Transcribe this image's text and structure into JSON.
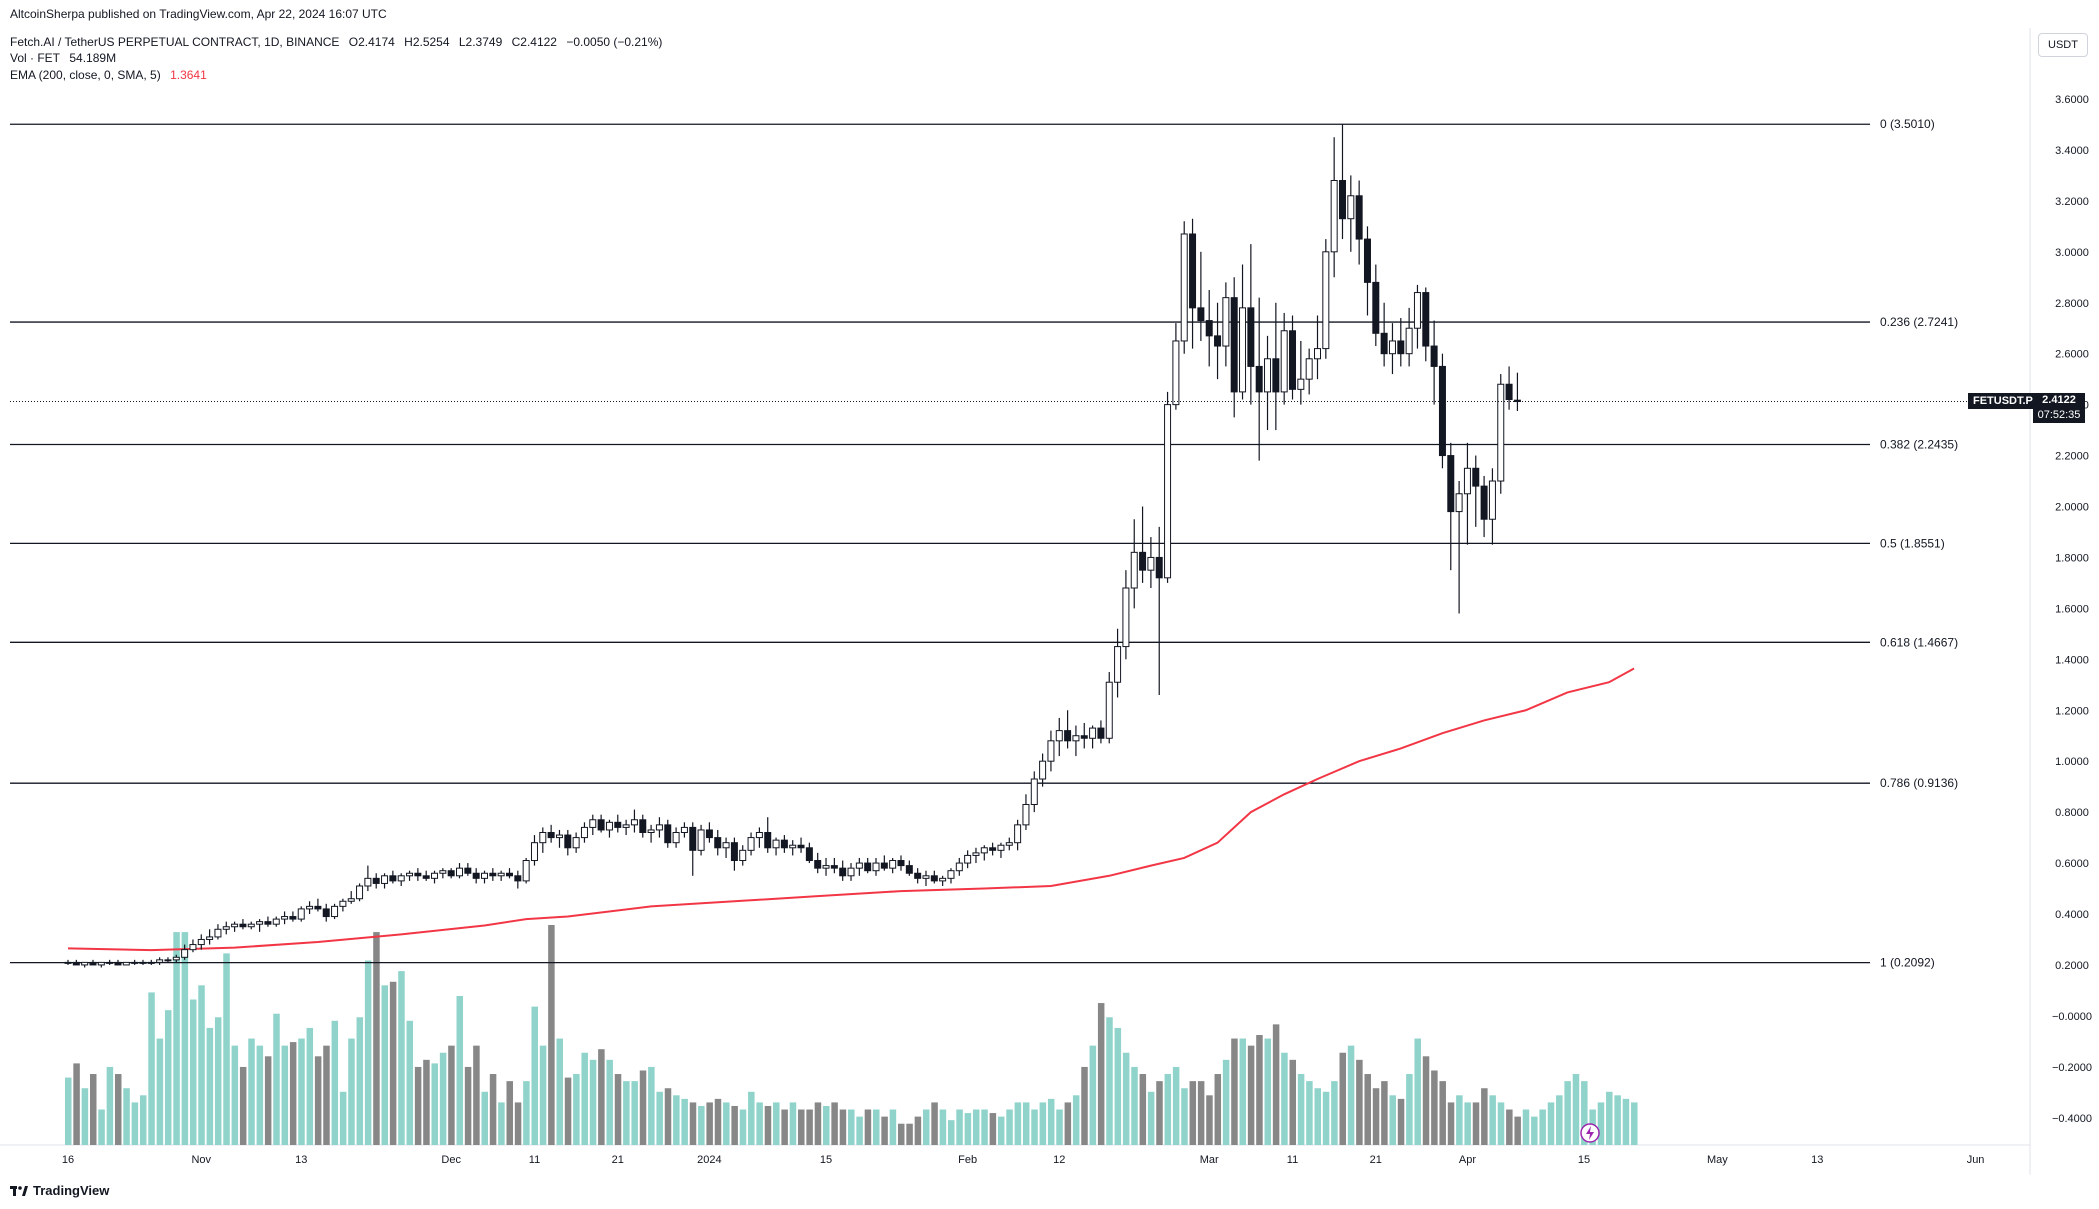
{
  "header": {
    "attribution": "AltcoinSherpa published on TradingView.com, Apr 22, 2024 16:07 UTC",
    "symbol_title": "Fetch.AI / TetherUS PERPETUAL CONTRACT, 1D, BINANCE",
    "open": "O2.4174",
    "high": "H2.5254",
    "low": "L2.3749",
    "close": "C2.4122",
    "change": "−0.0050 (−0.21%)",
    "vol_label": "Vol · FET",
    "vol_value": "54.189M",
    "ema_label": "EMA (200, close, 0, SMA, 5)",
    "ema_value": "1.3641"
  },
  "currency_button": "USDT",
  "symbol_badge": "FETUSDT.P",
  "price_badge": {
    "price": "2.4122",
    "countdown": "07:52:35"
  },
  "branding": "TradingView",
  "colors": {
    "up": "#ffffff",
    "down": "#131722",
    "ema": "#f23645",
    "vol_up": "#8fd3cb",
    "vol_down": "#878787",
    "line": "#131722"
  },
  "chart_data": {
    "type": "candlestick",
    "title": "Fetch.AI / TetherUS PERPETUAL CONTRACT, 1D, BINANCE",
    "ylim": [
      -0.45,
      3.75
    ],
    "y_ticks": [
      "3.6000",
      "3.4000",
      "3.2000",
      "3.0000",
      "2.8000",
      "2.6000",
      "2.4000",
      "2.2000",
      "2.0000",
      "1.8000",
      "1.6000",
      "1.4000",
      "1.2000",
      "1.0000",
      "0.8000",
      "0.6000",
      "0.4000",
      "0.2000",
      "−0.0000",
      "−0.2000",
      "−0.4000"
    ],
    "x_ticks": [
      {
        "label": "16",
        "day": 0
      },
      {
        "label": "Nov",
        "day": 16
      },
      {
        "label": "13",
        "day": 28
      },
      {
        "label": "Dec",
        "day": 46
      },
      {
        "label": "11",
        "day": 56
      },
      {
        "label": "21",
        "day": 66
      },
      {
        "label": "2024",
        "day": 77
      },
      {
        "label": "15",
        "day": 91
      },
      {
        "label": "Feb",
        "day": 108
      },
      {
        "label": "12",
        "day": 119
      },
      {
        "label": "Mar",
        "day": 137
      },
      {
        "label": "11",
        "day": 147
      },
      {
        "label": "21",
        "day": 157
      },
      {
        "label": "Apr",
        "day": 168
      },
      {
        "label": "15",
        "day": 182
      },
      {
        "label": "May",
        "day": 198
      },
      {
        "label": "13",
        "day": 210
      },
      {
        "label": "Jun",
        "day": 229
      }
    ],
    "fib_levels": [
      {
        "label": "0 (3.5010)",
        "value": 3.501
      },
      {
        "label": "0.236 (2.7241)",
        "value": 2.7241
      },
      {
        "label": "0.382 (2.2435)",
        "value": 2.2435
      },
      {
        "label": "0.5 (1.8551)",
        "value": 1.8551
      },
      {
        "label": "0.618 (1.4667)",
        "value": 1.4667
      },
      {
        "label": "0.786 (0.9136)",
        "value": 0.9136
      },
      {
        "label": "1 (0.2092)",
        "value": 0.2092
      }
    ],
    "last_price": 2.4122,
    "ema_points": [
      [
        0,
        0.265
      ],
      [
        10,
        0.258
      ],
      [
        20,
        0.268
      ],
      [
        30,
        0.29
      ],
      [
        40,
        0.32
      ],
      [
        50,
        0.355
      ],
      [
        55,
        0.38
      ],
      [
        60,
        0.39
      ],
      [
        70,
        0.43
      ],
      [
        80,
        0.45
      ],
      [
        90,
        0.47
      ],
      [
        100,
        0.49
      ],
      [
        110,
        0.5
      ],
      [
        118,
        0.51
      ],
      [
        125,
        0.55
      ],
      [
        130,
        0.59
      ],
      [
        134,
        0.62
      ],
      [
        138,
        0.68
      ],
      [
        142,
        0.8
      ],
      [
        146,
        0.87
      ],
      [
        150,
        0.93
      ],
      [
        155,
        1.0
      ],
      [
        160,
        1.05
      ],
      [
        165,
        1.11
      ],
      [
        170,
        1.16
      ],
      [
        175,
        1.2
      ],
      [
        180,
        1.27
      ],
      [
        185,
        1.31
      ],
      [
        188,
        1.3641
      ]
    ],
    "candles_ohlc": [
      [
        0.21,
        0.22,
        0.2,
        0.21
      ],
      [
        0.21,
        0.22,
        0.2,
        0.2
      ],
      [
        0.2,
        0.21,
        0.19,
        0.21
      ],
      [
        0.21,
        0.22,
        0.2,
        0.2
      ],
      [
        0.2,
        0.21,
        0.19,
        0.21
      ],
      [
        0.21,
        0.22,
        0.2,
        0.21
      ],
      [
        0.21,
        0.22,
        0.2,
        0.2
      ],
      [
        0.2,
        0.21,
        0.2,
        0.21
      ],
      [
        0.21,
        0.22,
        0.2,
        0.21
      ],
      [
        0.21,
        0.22,
        0.2,
        0.21
      ],
      [
        0.21,
        0.22,
        0.2,
        0.21
      ],
      [
        0.21,
        0.23,
        0.2,
        0.22
      ],
      [
        0.22,
        0.23,
        0.21,
        0.22
      ],
      [
        0.22,
        0.24,
        0.21,
        0.23
      ],
      [
        0.23,
        0.28,
        0.22,
        0.26
      ],
      [
        0.26,
        0.3,
        0.25,
        0.28
      ],
      [
        0.28,
        0.32,
        0.26,
        0.3
      ],
      [
        0.3,
        0.34,
        0.28,
        0.31
      ],
      [
        0.31,
        0.36,
        0.3,
        0.34
      ],
      [
        0.34,
        0.37,
        0.32,
        0.35
      ],
      [
        0.35,
        0.37,
        0.33,
        0.36
      ],
      [
        0.36,
        0.38,
        0.34,
        0.35
      ],
      [
        0.35,
        0.37,
        0.34,
        0.36
      ],
      [
        0.36,
        0.38,
        0.33,
        0.37
      ],
      [
        0.37,
        0.39,
        0.35,
        0.36
      ],
      [
        0.36,
        0.39,
        0.35,
        0.38
      ],
      [
        0.38,
        0.41,
        0.36,
        0.39
      ],
      [
        0.39,
        0.41,
        0.37,
        0.38
      ],
      [
        0.38,
        0.43,
        0.37,
        0.42
      ],
      [
        0.42,
        0.45,
        0.4,
        0.43
      ],
      [
        0.43,
        0.46,
        0.41,
        0.42
      ],
      [
        0.42,
        0.44,
        0.37,
        0.39
      ],
      [
        0.39,
        0.44,
        0.38,
        0.43
      ],
      [
        0.43,
        0.46,
        0.41,
        0.45
      ],
      [
        0.45,
        0.49,
        0.44,
        0.46
      ],
      [
        0.46,
        0.52,
        0.45,
        0.51
      ],
      [
        0.51,
        0.59,
        0.49,
        0.54
      ],
      [
        0.54,
        0.56,
        0.5,
        0.52
      ],
      [
        0.52,
        0.56,
        0.5,
        0.55
      ],
      [
        0.55,
        0.57,
        0.52,
        0.53
      ],
      [
        0.53,
        0.56,
        0.51,
        0.55
      ],
      [
        0.55,
        0.57,
        0.53,
        0.56
      ],
      [
        0.56,
        0.58,
        0.53,
        0.55
      ],
      [
        0.55,
        0.57,
        0.53,
        0.54
      ],
      [
        0.54,
        0.57,
        0.52,
        0.56
      ],
      [
        0.56,
        0.58,
        0.54,
        0.57
      ],
      [
        0.57,
        0.58,
        0.54,
        0.55
      ],
      [
        0.55,
        0.6,
        0.54,
        0.58
      ],
      [
        0.58,
        0.6,
        0.55,
        0.56
      ],
      [
        0.56,
        0.58,
        0.52,
        0.54
      ],
      [
        0.54,
        0.57,
        0.52,
        0.56
      ],
      [
        0.56,
        0.58,
        0.53,
        0.55
      ],
      [
        0.55,
        0.57,
        0.53,
        0.56
      ],
      [
        0.56,
        0.58,
        0.54,
        0.55
      ],
      [
        0.55,
        0.57,
        0.5,
        0.53
      ],
      [
        0.53,
        0.62,
        0.52,
        0.61
      ],
      [
        0.61,
        0.71,
        0.59,
        0.68
      ],
      [
        0.68,
        0.74,
        0.64,
        0.72
      ],
      [
        0.72,
        0.75,
        0.68,
        0.7
      ],
      [
        0.7,
        0.73,
        0.66,
        0.71
      ],
      [
        0.71,
        0.73,
        0.63,
        0.66
      ],
      [
        0.66,
        0.72,
        0.64,
        0.7
      ],
      [
        0.7,
        0.76,
        0.68,
        0.74
      ],
      [
        0.74,
        0.79,
        0.71,
        0.77
      ],
      [
        0.77,
        0.79,
        0.72,
        0.73
      ],
      [
        0.73,
        0.77,
        0.7,
        0.76
      ],
      [
        0.76,
        0.79,
        0.72,
        0.74
      ],
      [
        0.74,
        0.77,
        0.71,
        0.75
      ],
      [
        0.75,
        0.81,
        0.72,
        0.77
      ],
      [
        0.77,
        0.79,
        0.7,
        0.72
      ],
      [
        0.72,
        0.75,
        0.68,
        0.73
      ],
      [
        0.73,
        0.78,
        0.7,
        0.75
      ],
      [
        0.75,
        0.77,
        0.66,
        0.68
      ],
      [
        0.68,
        0.74,
        0.66,
        0.72
      ],
      [
        0.72,
        0.76,
        0.7,
        0.74
      ],
      [
        0.74,
        0.76,
        0.55,
        0.65
      ],
      [
        0.65,
        0.75,
        0.63,
        0.73
      ],
      [
        0.73,
        0.76,
        0.68,
        0.7
      ],
      [
        0.7,
        0.73,
        0.63,
        0.66
      ],
      [
        0.66,
        0.7,
        0.62,
        0.68
      ],
      [
        0.68,
        0.7,
        0.57,
        0.61
      ],
      [
        0.61,
        0.67,
        0.59,
        0.65
      ],
      [
        0.65,
        0.72,
        0.63,
        0.7
      ],
      [
        0.7,
        0.74,
        0.66,
        0.72
      ],
      [
        0.72,
        0.78,
        0.64,
        0.66
      ],
      [
        0.66,
        0.7,
        0.63,
        0.69
      ],
      [
        0.69,
        0.71,
        0.64,
        0.66
      ],
      [
        0.66,
        0.69,
        0.63,
        0.67
      ],
      [
        0.67,
        0.7,
        0.64,
        0.66
      ],
      [
        0.66,
        0.68,
        0.6,
        0.61
      ],
      [
        0.61,
        0.64,
        0.56,
        0.58
      ],
      [
        0.58,
        0.62,
        0.55,
        0.59
      ],
      [
        0.59,
        0.62,
        0.56,
        0.58
      ],
      [
        0.58,
        0.61,
        0.53,
        0.55
      ],
      [
        0.55,
        0.6,
        0.53,
        0.58
      ],
      [
        0.58,
        0.62,
        0.55,
        0.6
      ],
      [
        0.6,
        0.62,
        0.56,
        0.57
      ],
      [
        0.57,
        0.62,
        0.55,
        0.6
      ],
      [
        0.6,
        0.63,
        0.57,
        0.58
      ],
      [
        0.58,
        0.62,
        0.56,
        0.61
      ],
      [
        0.61,
        0.63,
        0.57,
        0.59
      ],
      [
        0.59,
        0.61,
        0.55,
        0.56
      ],
      [
        0.56,
        0.58,
        0.52,
        0.54
      ],
      [
        0.54,
        0.57,
        0.51,
        0.55
      ],
      [
        0.55,
        0.57,
        0.52,
        0.53
      ],
      [
        0.53,
        0.55,
        0.51,
        0.54
      ],
      [
        0.54,
        0.58,
        0.52,
        0.57
      ],
      [
        0.57,
        0.62,
        0.55,
        0.6
      ],
      [
        0.6,
        0.65,
        0.58,
        0.63
      ],
      [
        0.63,
        0.66,
        0.6,
        0.64
      ],
      [
        0.64,
        0.67,
        0.61,
        0.66
      ],
      [
        0.66,
        0.68,
        0.63,
        0.65
      ],
      [
        0.65,
        0.68,
        0.62,
        0.67
      ],
      [
        0.67,
        0.7,
        0.65,
        0.68
      ],
      [
        0.68,
        0.77,
        0.65,
        0.75
      ],
      [
        0.75,
        0.87,
        0.73,
        0.83
      ],
      [
        0.83,
        0.96,
        0.8,
        0.93
      ],
      [
        0.93,
        1.03,
        0.9,
        1.0
      ],
      [
        1.0,
        1.12,
        0.96,
        1.08
      ],
      [
        1.08,
        1.17,
        1.02,
        1.12
      ],
      [
        1.12,
        1.2,
        1.05,
        1.08
      ],
      [
        1.08,
        1.14,
        1.02,
        1.1
      ],
      [
        1.1,
        1.15,
        1.05,
        1.09
      ],
      [
        1.09,
        1.14,
        1.05,
        1.13
      ],
      [
        1.13,
        1.16,
        1.07,
        1.09
      ],
      [
        1.09,
        1.35,
        1.07,
        1.31
      ],
      [
        1.31,
        1.52,
        1.25,
        1.45
      ],
      [
        1.45,
        1.75,
        1.4,
        1.68
      ],
      [
        1.68,
        1.95,
        1.6,
        1.82
      ],
      [
        1.82,
        2.0,
        1.7,
        1.75
      ],
      [
        1.75,
        1.88,
        1.68,
        1.8
      ],
      [
        1.8,
        1.92,
        1.26,
        1.72
      ],
      [
        1.72,
        2.45,
        1.7,
        2.4
      ],
      [
        2.4,
        2.72,
        2.38,
        2.65
      ],
      [
        2.65,
        3.12,
        2.6,
        3.07
      ],
      [
        3.07,
        3.13,
        2.62,
        2.78
      ],
      [
        2.78,
        3.0,
        2.65,
        2.73
      ],
      [
        2.73,
        2.85,
        2.55,
        2.67
      ],
      [
        2.67,
        2.8,
        2.5,
        2.63
      ],
      [
        2.63,
        2.88,
        2.55,
        2.82
      ],
      [
        2.82,
        2.9,
        2.35,
        2.45
      ],
      [
        2.45,
        2.95,
        2.42,
        2.78
      ],
      [
        2.78,
        3.03,
        2.4,
        2.55
      ],
      [
        2.55,
        2.82,
        2.18,
        2.45
      ],
      [
        2.45,
        2.67,
        2.3,
        2.58
      ],
      [
        2.58,
        2.8,
        2.3,
        2.45
      ],
      [
        2.45,
        2.76,
        2.4,
        2.69
      ],
      [
        2.69,
        2.75,
        2.42,
        2.46
      ],
      [
        2.46,
        2.65,
        2.4,
        2.5
      ],
      [
        2.5,
        2.62,
        2.44,
        2.58
      ],
      [
        2.58,
        2.75,
        2.5,
        2.62
      ],
      [
        2.62,
        3.05,
        2.58,
        3.0
      ],
      [
        3.0,
        3.45,
        2.9,
        3.28
      ],
      [
        3.28,
        3.5,
        3.05,
        3.13
      ],
      [
        3.13,
        3.3,
        3.0,
        3.22
      ],
      [
        3.22,
        3.28,
        2.95,
        3.05
      ],
      [
        3.05,
        3.1,
        2.75,
        2.88
      ],
      [
        2.88,
        2.95,
        2.63,
        2.68
      ],
      [
        2.68,
        2.8,
        2.55,
        2.6
      ],
      [
        2.6,
        2.72,
        2.52,
        2.65
      ],
      [
        2.65,
        2.74,
        2.55,
        2.6
      ],
      [
        2.6,
        2.78,
        2.55,
        2.7
      ],
      [
        2.7,
        2.87,
        2.62,
        2.84
      ],
      [
        2.84,
        2.86,
        2.57,
        2.63
      ],
      [
        2.63,
        2.73,
        2.4,
        2.55
      ],
      [
        2.55,
        2.6,
        2.15,
        2.2
      ],
      [
        2.2,
        2.25,
        1.75,
        1.98
      ],
      [
        1.98,
        2.1,
        1.58,
        2.05
      ],
      [
        2.05,
        2.25,
        1.85,
        2.15
      ],
      [
        2.15,
        2.2,
        1.92,
        2.08
      ],
      [
        2.08,
        2.12,
        1.88,
        1.95
      ],
      [
        1.95,
        2.15,
        1.85,
        2.1
      ],
      [
        2.1,
        2.52,
        2.05,
        2.48
      ],
      [
        2.48,
        2.55,
        2.38,
        2.42
      ],
      [
        2.4174,
        2.5254,
        2.3749,
        2.4122
      ]
    ],
    "volume_values": [
      0.19,
      0.23,
      0.16,
      0.2,
      0.1,
      0.22,
      0.2,
      0.16,
      0.12,
      0.14,
      0.43,
      0.3,
      0.38,
      0.6,
      0.6,
      0.41,
      0.45,
      0.33,
      0.36,
      0.54,
      0.28,
      0.22,
      0.3,
      0.28,
      0.25,
      0.37,
      0.28,
      0.29,
      0.3,
      0.33,
      0.25,
      0.28,
      0.35,
      0.15,
      0.3,
      0.36,
      0.52,
      0.6,
      0.45,
      0.46,
      0.49,
      0.35,
      0.22,
      0.24,
      0.23,
      0.26,
      0.28,
      0.42,
      0.22,
      0.28,
      0.15,
      0.2,
      0.12,
      0.18,
      0.12,
      0.18,
      0.39,
      0.28,
      0.62,
      0.3,
      0.19,
      0.2,
      0.26,
      0.24,
      0.27,
      0.24,
      0.2,
      0.18,
      0.18,
      0.21,
      0.22,
      0.15,
      0.16,
      0.14,
      0.13,
      0.12,
      0.11,
      0.12,
      0.13,
      0.12,
      0.11,
      0.1,
      0.15,
      0.12,
      0.11,
      0.12,
      0.1,
      0.12,
      0.1,
      0.1,
      0.12,
      0.11,
      0.12,
      0.1,
      0.1,
      0.08,
      0.1,
      0.1,
      0.08,
      0.1,
      0.06,
      0.06,
      0.08,
      0.1,
      0.12,
      0.1,
      0.07,
      0.1,
      0.09,
      0.1,
      0.1,
      0.09,
      0.08,
      0.1,
      0.12,
      0.12,
      0.1,
      0.12,
      0.13,
      0.1,
      0.12,
      0.14,
      0.22,
      0.28,
      0.4,
      0.36,
      0.33,
      0.26,
      0.22,
      0.2,
      0.15,
      0.18,
      0.2,
      0.22,
      0.16,
      0.18,
      0.18,
      0.14,
      0.2,
      0.24,
      0.3,
      0.3,
      0.28,
      0.31,
      0.3,
      0.34,
      0.26,
      0.24,
      0.2,
      0.18,
      0.16,
      0.15,
      0.18,
      0.26,
      0.28,
      0.24,
      0.2,
      0.16,
      0.18,
      0.14,
      0.13,
      0.2,
      0.3,
      0.25,
      0.21,
      0.18,
      0.12,
      0.14,
      0.12,
      0.12,
      0.16,
      0.14,
      0.12,
      0.1,
      0.08,
      0.1,
      0.08,
      0.1,
      0.12,
      0.14,
      0.18,
      0.2,
      0.18,
      0.1,
      0.12,
      0.15,
      0.14,
      0.13,
      0.12
    ]
  }
}
